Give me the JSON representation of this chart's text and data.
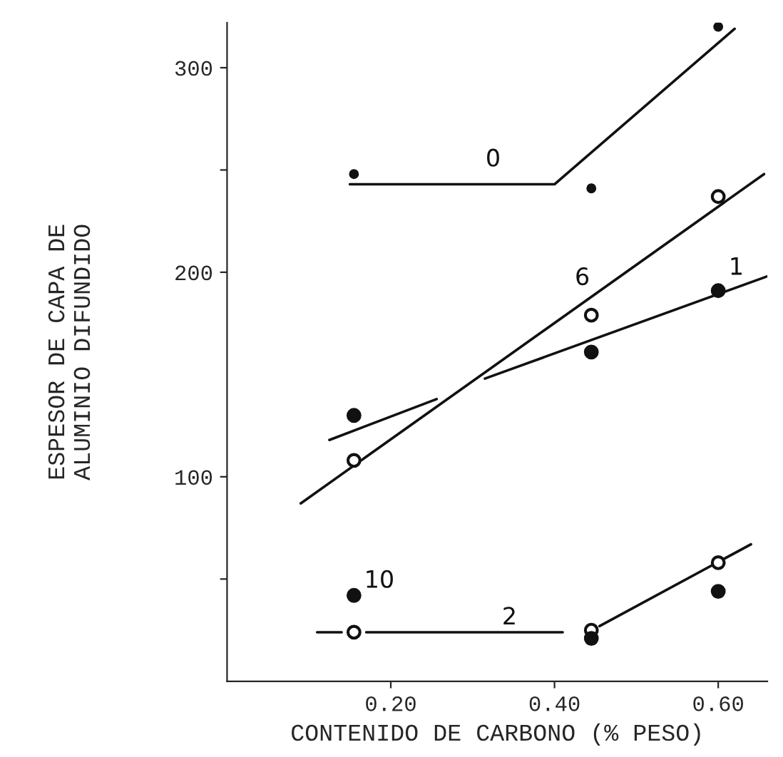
{
  "chart_data": {
    "type": "scatter",
    "xlabel": "CONTENIDO DE CARBONO (% PESO)",
    "ylabel": "ESPESOR DE CAPA DE\nALUMINIO DIFUNDIDO",
    "xlim": [
      0,
      0.66
    ],
    "ylim": [
      0,
      322
    ],
    "xticks": [
      {
        "value": 0.2,
        "label": "0.20"
      },
      {
        "value": 0.4,
        "label": "0.40"
      },
      {
        "value": 0.6,
        "label": "0.60"
      }
    ],
    "yticks": [
      {
        "value": 50,
        "label": null
      },
      100,
      200,
      {
        "value": 250,
        "label": null
      },
      300
    ],
    "grid": false,
    "legend": false,
    "series": [
      {
        "marker": "circle",
        "color": "#111111",
        "x": [
          0.155,
          0.445,
          0.6
        ],
        "values": [
          248,
          241,
          320
        ]
      },
      {
        "marker": "circle",
        "color": "#111111",
        "x": [
          0.155,
          0.445,
          0.6
        ],
        "values": [
          130,
          161,
          191
        ]
      },
      {
        "marker": "circle",
        "color": "#111111",
        "x": [
          0.155,
          0.445,
          0.6
        ],
        "values": [
          108,
          179,
          237
        ]
      },
      {
        "marker": "circle",
        "color": "#111111",
        "x": [
          0.155,
          0.445,
          0.6
        ],
        "values": [
          24,
          25,
          58
        ]
      },
      {
        "name": "10",
        "marker": "circle",
        "color": "#111111",
        "x": [
          0.155,
          0.445,
          0.6
        ],
        "values": [
          42,
          21,
          44
        ]
      },
      {
        "type": "line",
        "name": "0",
        "marker": "none",
        "color": "#111111",
        "x": [
          0.15,
          0.4,
          0.62
        ],
        "values": [
          243,
          243,
          319
        ]
      },
      {
        "type": "line",
        "name": "1",
        "marker": "none",
        "color": "#111111",
        "x": [
          0.125,
          0.256,
          0.285,
          0.315,
          0.66
        ],
        "values": [
          118,
          138,
          null,
          148,
          198
        ]
      },
      {
        "type": "line",
        "name": "6",
        "marker": "none",
        "color": "#111111",
        "x": [
          0.09,
          0.656
        ],
        "values": [
          87,
          248
        ]
      },
      {
        "type": "line",
        "name": "2",
        "marker": "none",
        "color": "#111111",
        "x": [
          0.11,
          0.14,
          0.155,
          0.17,
          0.41,
          0.43,
          0.455,
          0.64
        ],
        "values": [
          24,
          24,
          null,
          24,
          24,
          null,
          27,
          67
        ]
      }
    ]
  }
}
